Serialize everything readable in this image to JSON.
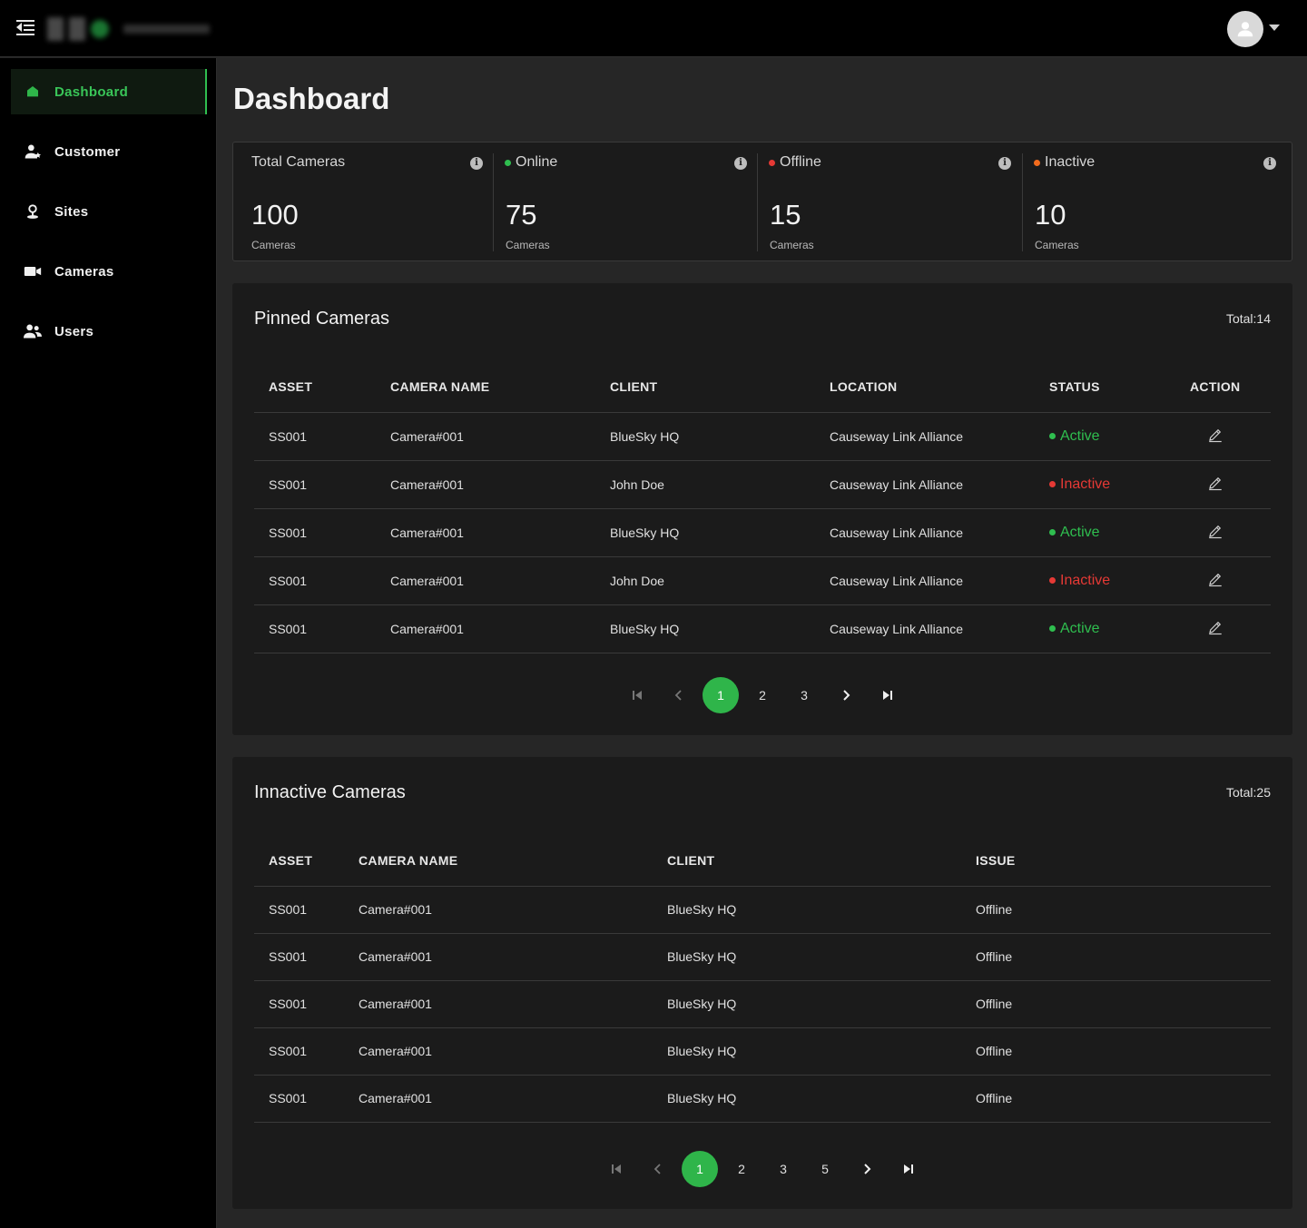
{
  "page": {
    "title": "Dashboard"
  },
  "sidebar": {
    "items": [
      {
        "label": "Dashboard",
        "icon": "home-icon",
        "active": true
      },
      {
        "label": "Customer",
        "icon": "customer-icon"
      },
      {
        "label": "Sites",
        "icon": "sites-icon"
      },
      {
        "label": "Cameras",
        "icon": "camera-icon"
      },
      {
        "label": "Users",
        "icon": "users-icon"
      }
    ]
  },
  "stats": [
    {
      "label": "Total Cameras",
      "value": "100",
      "unit": "Cameras",
      "dot_color": ""
    },
    {
      "label": "Online",
      "value": "75",
      "unit": "Cameras",
      "dot_color": "#2fbe4f"
    },
    {
      "label": "Offline",
      "value": "15",
      "unit": "Cameras",
      "dot_color": "#e53935"
    },
    {
      "label": "Inactive",
      "value": "10",
      "unit": "Cameras",
      "dot_color": "#f26b1d"
    }
  ],
  "pinned": {
    "title": "Pinned Cameras",
    "total": "Total:14",
    "columns": [
      "ASSET",
      "CAMERA NAME",
      "CLIENT",
      "LOCATION",
      "STATUS",
      "ACTION"
    ],
    "rows": [
      {
        "asset": "SS001",
        "camera": "Camera#001",
        "client": "BlueSky HQ",
        "location": "Causeway Link Alliance",
        "status": "Active"
      },
      {
        "asset": "SS001",
        "camera": "Camera#001",
        "client": "John Doe",
        "location": "Causeway Link Alliance",
        "status": "Inactive"
      },
      {
        "asset": "SS001",
        "camera": "Camera#001",
        "client": "BlueSky HQ",
        "location": "Causeway Link Alliance",
        "status": "Active"
      },
      {
        "asset": "SS001",
        "camera": "Camera#001",
        "client": "John Doe",
        "location": "Causeway Link Alliance",
        "status": "Inactive"
      },
      {
        "asset": "SS001",
        "camera": "Camera#001",
        "client": "BlueSky HQ",
        "location": "Causeway Link Alliance",
        "status": "Active"
      }
    ],
    "pages": [
      "1",
      "2",
      "3"
    ],
    "current_page": "1"
  },
  "inactive": {
    "title": "Innactive Cameras",
    "total": "Total:25",
    "columns": [
      "ASSET",
      "CAMERA NAME",
      "CLIENT",
      "ISSUE"
    ],
    "rows": [
      {
        "asset": "SS001",
        "camera": "Camera#001",
        "client": "BlueSky HQ",
        "issue": "Offline"
      },
      {
        "asset": "SS001",
        "camera": "Camera#001",
        "client": "BlueSky HQ",
        "issue": "Offline"
      },
      {
        "asset": "SS001",
        "camera": "Camera#001",
        "client": "BlueSky HQ",
        "issue": "Offline"
      },
      {
        "asset": "SS001",
        "camera": "Camera#001",
        "client": "BlueSky HQ",
        "issue": "Offline"
      },
      {
        "asset": "SS001",
        "camera": "Camera#001",
        "client": "BlueSky HQ",
        "issue": "Offline"
      }
    ],
    "pages": [
      "1",
      "2",
      "3",
      "5"
    ],
    "current_page": "1"
  },
  "colors": {
    "accent": "#2fb54a",
    "active": "#2fbe4f",
    "inactive": "#e53935",
    "offline": "#e53935",
    "warning": "#f26b1d"
  }
}
